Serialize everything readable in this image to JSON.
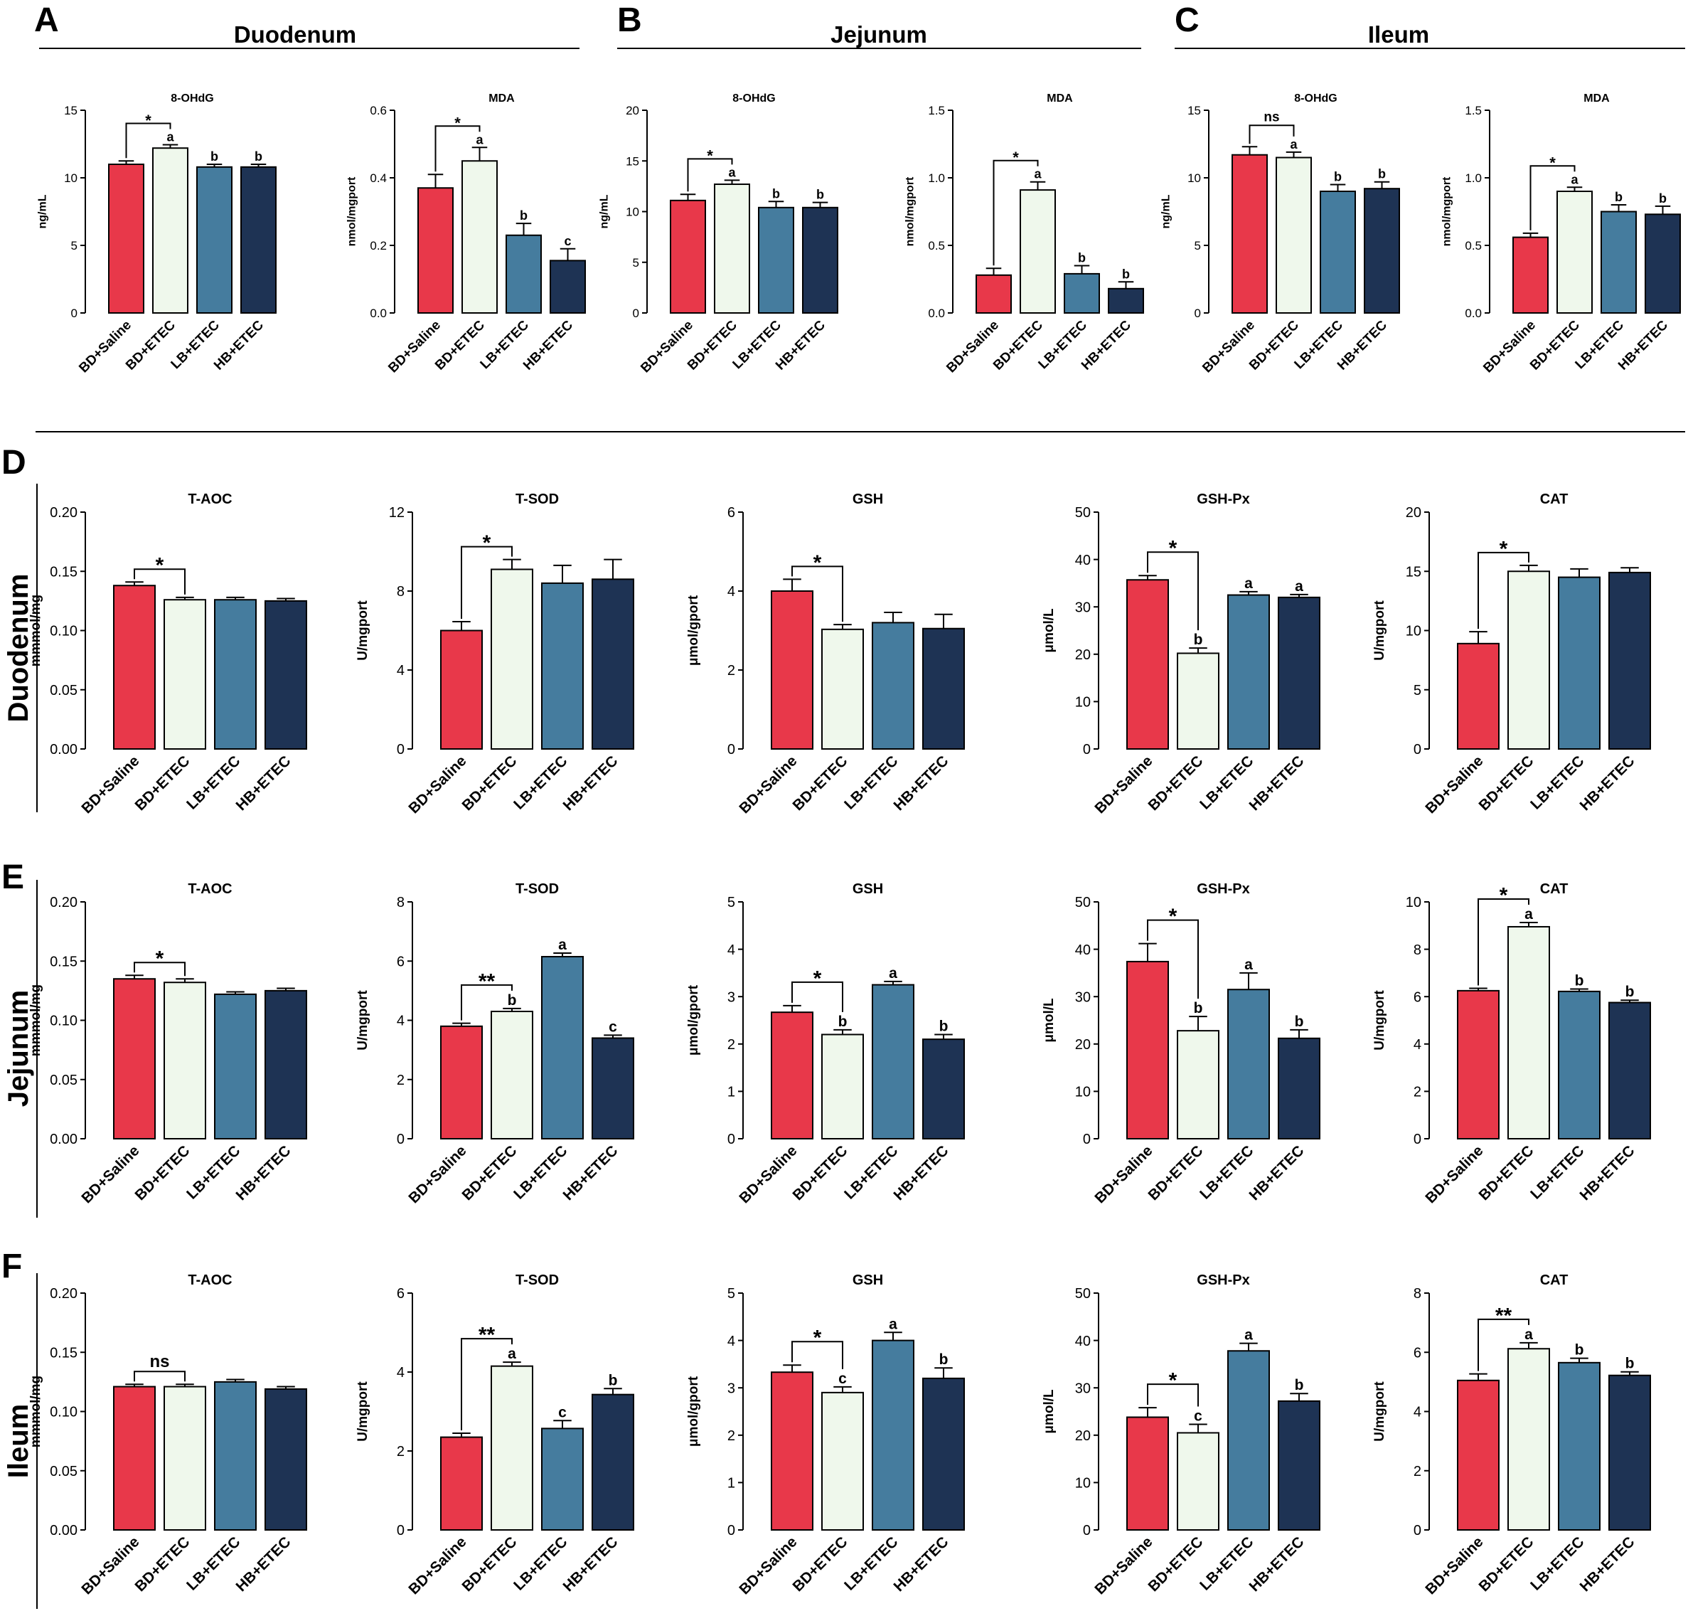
{
  "palette": {
    "BD+Saline": "#e8384a",
    "BD+ETEC": "#eff8ec",
    "LB+ETEC": "#457c9e",
    "HB+ETEC": "#1e3354"
  },
  "groups": [
    "BD+Saline",
    "BD+ETEC",
    "LB+ETEC",
    "HB+ETEC"
  ],
  "headers": [
    {
      "letter": "A",
      "title": "Duodenum"
    },
    {
      "letter": "B",
      "title": "Jejunum"
    },
    {
      "letter": "C",
      "title": "Ileum"
    }
  ],
  "rows": [
    {
      "letter": "D",
      "label": "Duodenum"
    },
    {
      "letter": "E",
      "label": "Jejunum"
    },
    {
      "letter": "F",
      "label": "Ileum"
    }
  ],
  "chart_data": [
    {
      "panel": "A",
      "type": "bar",
      "title": "8-OHdG",
      "ylabel": "ng/mL",
      "categories": [
        "BD+Saline",
        "BD+ETEC",
        "LB+ETEC",
        "HB+ETEC"
      ],
      "values": [
        11.0,
        12.2,
        10.8,
        10.8
      ],
      "errors": [
        0.25,
        0.25,
        0.2,
        0.2
      ],
      "letters": [
        "",
        "a",
        "b",
        "b"
      ],
      "sig": {
        "label": "*",
        "from": 0,
        "to": 1
      },
      "ylim": [
        0,
        15
      ],
      "ticks": [
        "0",
        "5",
        "10",
        "15"
      ]
    },
    {
      "panel": "A",
      "type": "bar",
      "title": "MDA",
      "ylabel": "nmol/mgport",
      "categories": [
        "BD+Saline",
        "BD+ETEC",
        "LB+ETEC",
        "HB+ETEC"
      ],
      "values": [
        0.37,
        0.45,
        0.23,
        0.155
      ],
      "errors": [
        0.04,
        0.04,
        0.035,
        0.035
      ],
      "letters": [
        "",
        "a",
        "b",
        "c"
      ],
      "sig": {
        "label": "*",
        "from": 0,
        "to": 1
      },
      "ylim": [
        0,
        0.6
      ],
      "ticks": [
        "0.0",
        "0.2",
        "0.4",
        "0.6"
      ]
    },
    {
      "panel": "B",
      "type": "bar",
      "title": "8-OHdG",
      "ylabel": "ng/mL",
      "categories": [
        "BD+Saline",
        "BD+ETEC",
        "LB+ETEC",
        "HB+ETEC"
      ],
      "values": [
        11.1,
        12.7,
        10.4,
        10.4
      ],
      "errors": [
        0.6,
        0.4,
        0.6,
        0.5
      ],
      "letters": [
        "",
        "a",
        "b",
        "b"
      ],
      "sig": {
        "label": "*",
        "from": 0,
        "to": 1
      },
      "ylim": [
        0,
        20
      ],
      "ticks": [
        "0",
        "5",
        "10",
        "15",
        "20"
      ]
    },
    {
      "panel": "B",
      "type": "bar",
      "title": "MDA",
      "ylabel": "nmol/mgport",
      "categories": [
        "BD+Saline",
        "BD+ETEC",
        "LB+ETEC",
        "HB+ETEC"
      ],
      "values": [
        0.28,
        0.91,
        0.29,
        0.18
      ],
      "errors": [
        0.05,
        0.06,
        0.06,
        0.05
      ],
      "letters": [
        "",
        "a",
        "b",
        "b"
      ],
      "sig": {
        "label": "*",
        "from": 0,
        "to": 1
      },
      "ylim": [
        0,
        1.5
      ],
      "ticks": [
        "0.0",
        "0.5",
        "1.0",
        "1.5"
      ]
    },
    {
      "panel": "C",
      "type": "bar",
      "title": "8-OHdG",
      "ylabel": "ng/mL",
      "categories": [
        "BD+Saline",
        "BD+ETEC",
        "LB+ETEC",
        "HB+ETEC"
      ],
      "values": [
        11.7,
        11.5,
        9.0,
        9.2
      ],
      "errors": [
        0.6,
        0.4,
        0.5,
        0.5
      ],
      "letters": [
        "",
        "a",
        "b",
        "b"
      ],
      "sig": {
        "label": "ns",
        "from": 0,
        "to": 1
      },
      "ylim": [
        0,
        15
      ],
      "ticks": [
        "0",
        "5",
        "10",
        "15"
      ]
    },
    {
      "panel": "C",
      "type": "bar",
      "title": "MDA",
      "ylabel": "nmol/mgport",
      "categories": [
        "BD+Saline",
        "BD+ETEC",
        "LB+ETEC",
        "HB+ETEC"
      ],
      "values": [
        0.56,
        0.9,
        0.75,
        0.73
      ],
      "errors": [
        0.03,
        0.03,
        0.05,
        0.06
      ],
      "letters": [
        "",
        "a",
        "b",
        "b"
      ],
      "sig": {
        "label": "*",
        "from": 0,
        "to": 1
      },
      "ylim": [
        0,
        1.5
      ],
      "ticks": [
        "0.0",
        "0.5",
        "1.0",
        "1.5"
      ]
    },
    {
      "panel": "D",
      "type": "bar",
      "title": "T-AOC",
      "ylabel": "mmmol/mg",
      "categories": [
        "BD+Saline",
        "BD+ETEC",
        "LB+ETEC",
        "HB+ETEC"
      ],
      "values": [
        0.138,
        0.126,
        0.126,
        0.125
      ],
      "errors": [
        0.003,
        0.002,
        0.002,
        0.002
      ],
      "letters": [
        "",
        "",
        "",
        ""
      ],
      "sig": {
        "label": "*",
        "from": 0,
        "to": 1
      },
      "ylim": [
        0,
        0.2
      ],
      "ticks": [
        "0.00",
        "0.05",
        "0.10",
        "0.15",
        "0.20"
      ]
    },
    {
      "panel": "D",
      "type": "bar",
      "title": "T-SOD",
      "ylabel": "U/mgport",
      "categories": [
        "BD+Saline",
        "BD+ETEC",
        "LB+ETEC",
        "HB+ETEC"
      ],
      "values": [
        6.0,
        9.1,
        8.4,
        8.6
      ],
      "errors": [
        0.45,
        0.5,
        0.9,
        1.0
      ],
      "letters": [
        "",
        "",
        "",
        ""
      ],
      "sig": {
        "label": "*",
        "from": 0,
        "to": 1
      },
      "ylim": [
        0,
        12
      ],
      "ticks": [
        "0",
        "4",
        "8",
        "12"
      ]
    },
    {
      "panel": "D",
      "type": "bar",
      "title": "GSH",
      "ylabel": "μmol/gport",
      "categories": [
        "BD+Saline",
        "BD+ETEC",
        "LB+ETEC",
        "HB+ETEC"
      ],
      "values": [
        4.0,
        3.03,
        3.2,
        3.05
      ],
      "errors": [
        0.3,
        0.12,
        0.26,
        0.36
      ],
      "letters": [
        "",
        "",
        "",
        ""
      ],
      "sig": {
        "label": "*",
        "from": 0,
        "to": 1
      },
      "ylim": [
        0,
        6
      ],
      "ticks": [
        "0",
        "2",
        "4",
        "6"
      ]
    },
    {
      "panel": "D",
      "type": "bar",
      "title": "GSH-Px",
      "ylabel": "μmol/L",
      "categories": [
        "BD+Saline",
        "BD+ETEC",
        "LB+ETEC",
        "HB+ETEC"
      ],
      "values": [
        35.7,
        20.2,
        32.5,
        32.0
      ],
      "errors": [
        0.9,
        1.1,
        0.7,
        0.6
      ],
      "letters": [
        "",
        "b",
        "a",
        "a"
      ],
      "sig": {
        "label": "*",
        "from": 0,
        "to": 1
      },
      "ylim": [
        0,
        50
      ],
      "ticks": [
        "0",
        "10",
        "20",
        "30",
        "40",
        "50"
      ]
    },
    {
      "panel": "D",
      "type": "bar",
      "title": "CAT",
      "ylabel": "U/mgport",
      "categories": [
        "BD+Saline",
        "BD+ETEC",
        "LB+ETEC",
        "HB+ETEC"
      ],
      "values": [
        8.9,
        15.0,
        14.5,
        14.9
      ],
      "errors": [
        1.0,
        0.5,
        0.7,
        0.4
      ],
      "letters": [
        "",
        "",
        "",
        ""
      ],
      "sig": {
        "label": "*",
        "from": 0,
        "to": 1
      },
      "ylim": [
        0,
        20
      ],
      "ticks": [
        "0",
        "5",
        "10",
        "15",
        "20"
      ]
    },
    {
      "panel": "E",
      "type": "bar",
      "title": "T-AOC",
      "ylabel": "mmmol/mg",
      "categories": [
        "BD+Saline",
        "BD+ETEC",
        "LB+ETEC",
        "HB+ETEC"
      ],
      "values": [
        0.135,
        0.132,
        0.122,
        0.125
      ],
      "errors": [
        0.003,
        0.003,
        0.002,
        0.002
      ],
      "letters": [
        "",
        "",
        "",
        ""
      ],
      "sig": {
        "label": "*",
        "from": 0,
        "to": 1
      },
      "ylim": [
        0,
        0.2
      ],
      "ticks": [
        "0.00",
        "0.05",
        "0.10",
        "0.15",
        "0.20"
      ]
    },
    {
      "panel": "E",
      "type": "bar",
      "title": "T-SOD",
      "ylabel": "U/mgport",
      "categories": [
        "BD+Saline",
        "BD+ETEC",
        "LB+ETEC",
        "HB+ETEC"
      ],
      "values": [
        3.8,
        4.3,
        6.15,
        3.4
      ],
      "errors": [
        0.1,
        0.1,
        0.12,
        0.1
      ],
      "letters": [
        "",
        "b",
        "a",
        "c"
      ],
      "sig": {
        "label": "**",
        "from": 0,
        "to": 1
      },
      "ylim": [
        0,
        8
      ],
      "ticks": [
        "0",
        "2",
        "4",
        "6",
        "8"
      ]
    },
    {
      "panel": "E",
      "type": "bar",
      "title": "GSH",
      "ylabel": "μmol/gport",
      "categories": [
        "BD+Saline",
        "BD+ETEC",
        "LB+ETEC",
        "HB+ETEC"
      ],
      "values": [
        2.67,
        2.2,
        3.25,
        2.1
      ],
      "errors": [
        0.14,
        0.1,
        0.07,
        0.1
      ],
      "letters": [
        "",
        "b",
        "a",
        "b"
      ],
      "sig": {
        "label": "*",
        "from": 0,
        "to": 1
      },
      "ylim": [
        0,
        5
      ],
      "ticks": [
        "0",
        "1",
        "2",
        "3",
        "4",
        "5"
      ]
    },
    {
      "panel": "E",
      "type": "bar",
      "title": "GSH-Px",
      "ylabel": "μmol/L",
      "categories": [
        "BD+Saline",
        "BD+ETEC",
        "LB+ETEC",
        "HB+ETEC"
      ],
      "values": [
        37.4,
        22.8,
        31.5,
        21.2
      ],
      "errors": [
        3.8,
        3.0,
        3.5,
        1.8
      ],
      "letters": [
        "",
        "b",
        "a",
        "b"
      ],
      "sig": {
        "label": "*",
        "from": 0,
        "to": 1
      },
      "ylim": [
        0,
        50
      ],
      "ticks": [
        "0",
        "10",
        "20",
        "30",
        "40",
        "50"
      ]
    },
    {
      "panel": "E",
      "type": "bar",
      "title": "CAT",
      "ylabel": "U/mgport",
      "categories": [
        "BD+Saline",
        "BD+ETEC",
        "LB+ETEC",
        "HB+ETEC"
      ],
      "values": [
        6.25,
        8.95,
        6.22,
        5.75
      ],
      "errors": [
        0.1,
        0.18,
        0.1,
        0.1
      ],
      "letters": [
        "",
        "a",
        "b",
        "b"
      ],
      "sig": {
        "label": "*",
        "from": 0,
        "to": 1
      },
      "ylim": [
        0,
        10
      ],
      "ticks": [
        "0",
        "2",
        "4",
        "6",
        "8",
        "10"
      ]
    },
    {
      "panel": "F",
      "type": "bar",
      "title": "T-AOC",
      "ylabel": "mmmol/mg",
      "categories": [
        "BD+Saline",
        "BD+ETEC",
        "LB+ETEC",
        "HB+ETEC"
      ],
      "values": [
        0.121,
        0.121,
        0.125,
        0.119
      ],
      "errors": [
        0.002,
        0.002,
        0.002,
        0.002
      ],
      "letters": [
        "",
        "",
        "",
        ""
      ],
      "sig": {
        "label": "ns",
        "from": 0,
        "to": 1
      },
      "ylim": [
        0,
        0.2
      ],
      "ticks": [
        "0.00",
        "0.05",
        "0.10",
        "0.15",
        "0.20"
      ]
    },
    {
      "panel": "F",
      "type": "bar",
      "title": "T-SOD",
      "ylabel": "U/mgport",
      "categories": [
        "BD+Saline",
        "BD+ETEC",
        "LB+ETEC",
        "HB+ETEC"
      ],
      "values": [
        2.35,
        4.15,
        2.57,
        3.43
      ],
      "errors": [
        0.1,
        0.1,
        0.2,
        0.15
      ],
      "letters": [
        "",
        "a",
        "c",
        "b"
      ],
      "sig": {
        "label": "**",
        "from": 0,
        "to": 1
      },
      "ylim": [
        0,
        6
      ],
      "ticks": [
        "0",
        "2",
        "4",
        "6"
      ]
    },
    {
      "panel": "F",
      "type": "bar",
      "title": "GSH",
      "ylabel": "μmol/gport",
      "categories": [
        "BD+Saline",
        "BD+ETEC",
        "LB+ETEC",
        "HB+ETEC"
      ],
      "values": [
        3.33,
        2.9,
        4.0,
        3.2
      ],
      "errors": [
        0.15,
        0.12,
        0.17,
        0.22
      ],
      "letters": [
        "",
        "c",
        "a",
        "b"
      ],
      "sig": {
        "label": "*",
        "from": 0,
        "to": 1
      },
      "ylim": [
        0,
        5
      ],
      "ticks": [
        "0",
        "1",
        "2",
        "3",
        "4",
        "5"
      ]
    },
    {
      "panel": "F",
      "type": "bar",
      "title": "GSH-Px",
      "ylabel": "μmol/L",
      "categories": [
        "BD+Saline",
        "BD+ETEC",
        "LB+ETEC",
        "HB+ETEC"
      ],
      "values": [
        23.8,
        20.5,
        37.8,
        27.2
      ],
      "errors": [
        2.0,
        1.8,
        1.6,
        1.6
      ],
      "letters": [
        "",
        "c",
        "a",
        "b"
      ],
      "sig": {
        "label": "*",
        "from": 0,
        "to": 1
      },
      "ylim": [
        0,
        50
      ],
      "ticks": [
        "0",
        "10",
        "20",
        "30",
        "40",
        "50"
      ]
    },
    {
      "panel": "F",
      "type": "bar",
      "title": "CAT",
      "ylabel": "U/mgport",
      "categories": [
        "BD+Saline",
        "BD+ETEC",
        "LB+ETEC",
        "HB+ETEC"
      ],
      "values": [
        5.05,
        6.12,
        5.65,
        5.22
      ],
      "errors": [
        0.22,
        0.2,
        0.15,
        0.12
      ],
      "letters": [
        "",
        "a",
        "b",
        "b"
      ],
      "sig": {
        "label": "**",
        "from": 0,
        "to": 1
      },
      "ylim": [
        0,
        8
      ],
      "ticks": [
        "0",
        "2",
        "4",
        "6",
        "8"
      ]
    }
  ]
}
